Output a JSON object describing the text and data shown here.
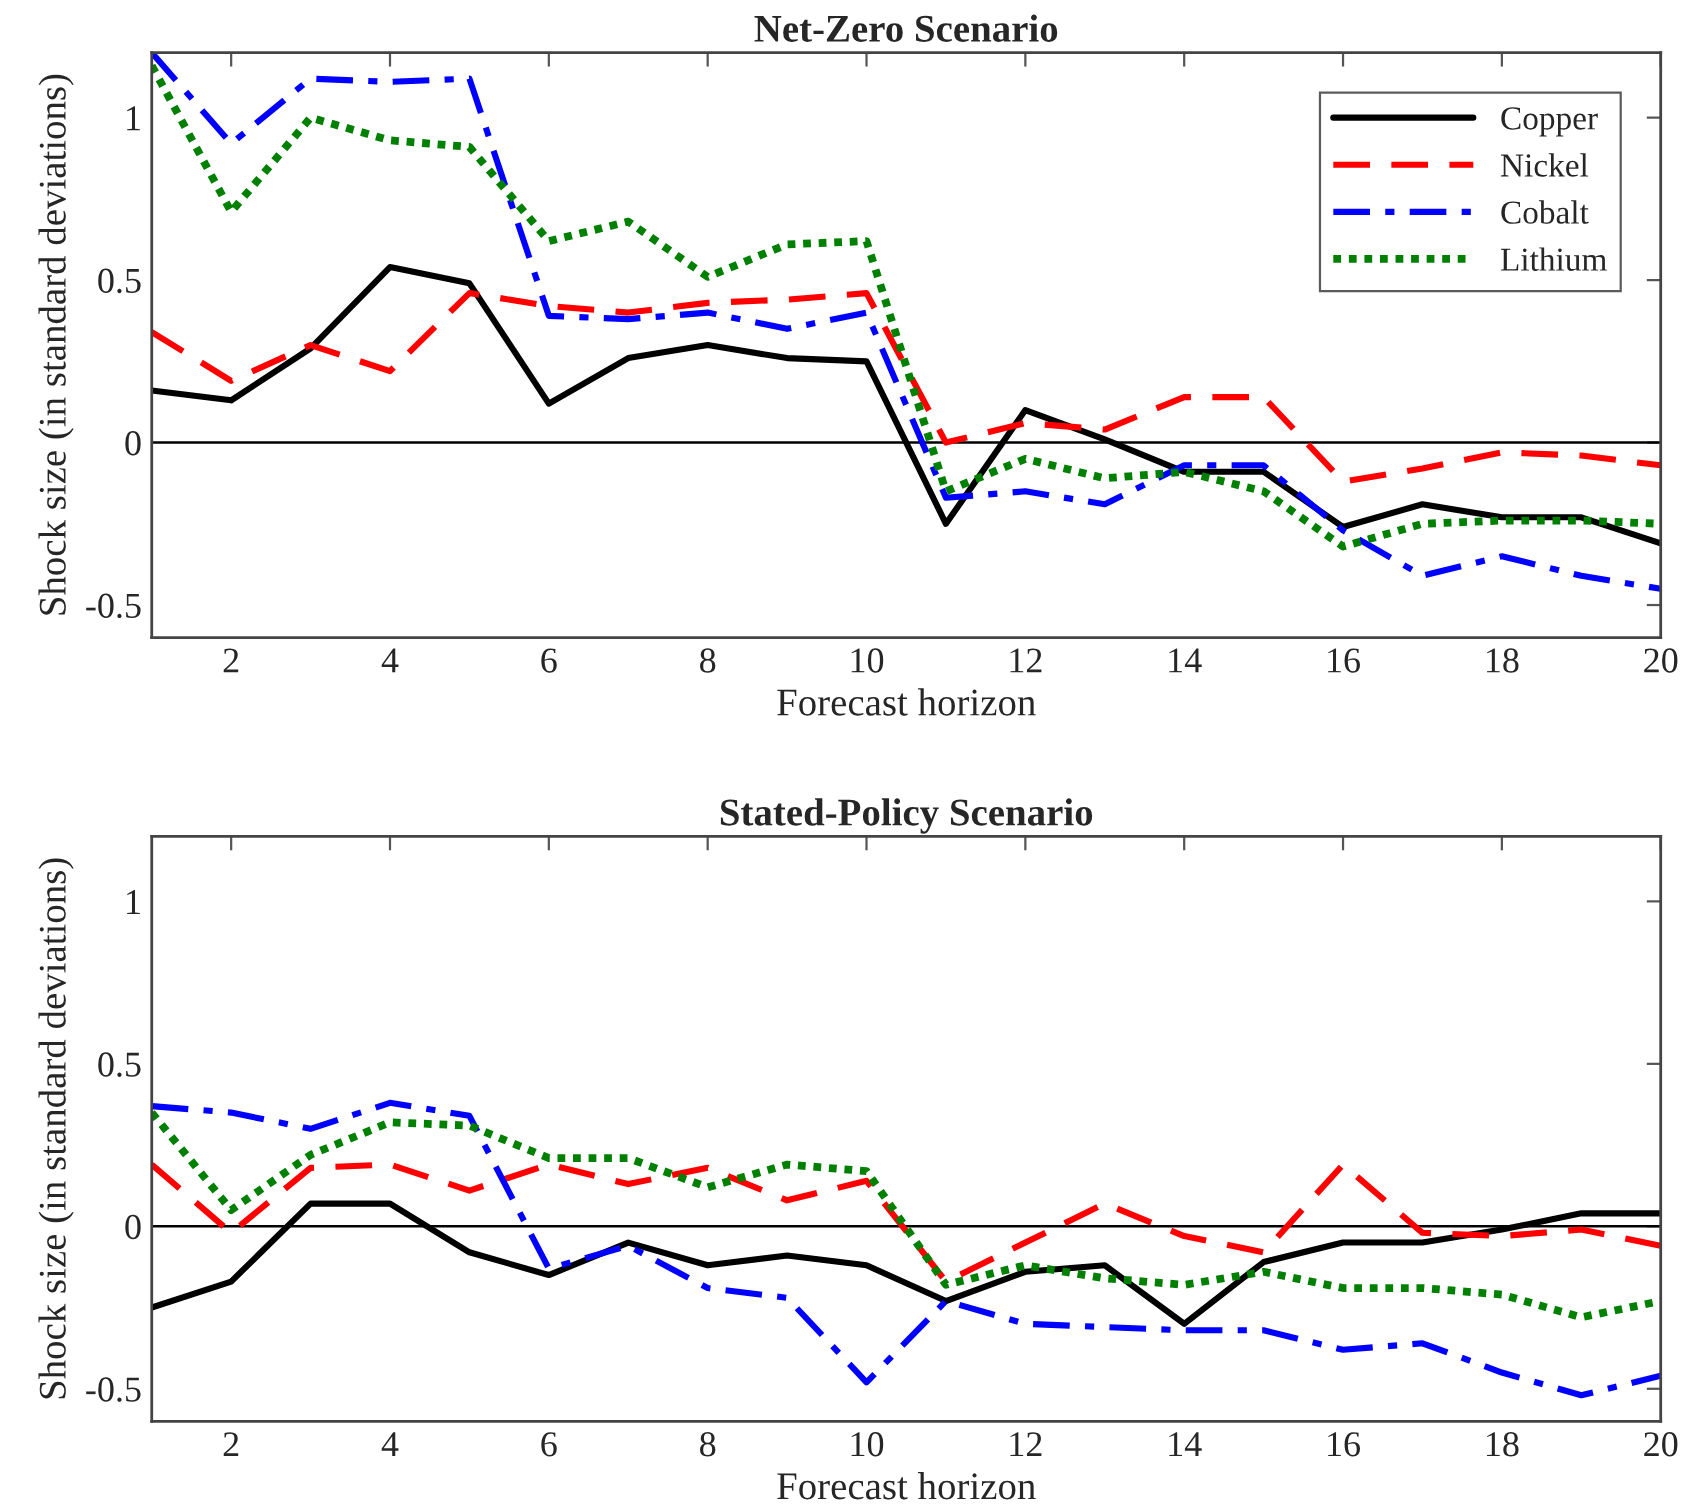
{
  "chart_data": [
    {
      "type": "line",
      "title": "Net-Zero Scenario",
      "xlabel": "Forecast horizon",
      "ylabel": "Shock size (in standard deviations)",
      "x": [
        1,
        2,
        3,
        4,
        5,
        6,
        7,
        8,
        9,
        10,
        11,
        12,
        13,
        14,
        15,
        16,
        17,
        18,
        19,
        20
      ],
      "xlim": [
        1,
        20
      ],
      "xticks": [
        2,
        4,
        6,
        8,
        10,
        12,
        14,
        16,
        18,
        20
      ],
      "ylim": [
        -0.6,
        1.2
      ],
      "yticks": [
        -0.5,
        0,
        0.5,
        1
      ],
      "ref_lines": [
        {
          "axis": "y",
          "value": 0,
          "color": "#000000"
        }
      ],
      "legend": "top right",
      "grid": false,
      "series": [
        {
          "name": "Copper",
          "color": "#000000",
          "line_style": "solid",
          "values": [
            0.16,
            0.13,
            0.29,
            0.54,
            0.49,
            0.12,
            0.26,
            0.3,
            0.26,
            0.25,
            -0.25,
            0.1,
            0.01,
            -0.09,
            -0.09,
            -0.26,
            -0.19,
            -0.23,
            -0.23,
            -0.31
          ]
        },
        {
          "name": "Nickel",
          "color": "#ff0000",
          "line_style": "dashed",
          "values": [
            0.34,
            0.19,
            0.3,
            0.22,
            0.46,
            0.42,
            0.4,
            0.43,
            0.44,
            0.46,
            0.0,
            0.06,
            0.04,
            0.14,
            0.14,
            -0.12,
            -0.08,
            -0.03,
            -0.04,
            -0.07
          ]
        },
        {
          "name": "Cobalt",
          "color": "#0000ff",
          "line_style": "dashdot",
          "values": [
            1.2,
            0.92,
            1.12,
            1.11,
            1.12,
            0.39,
            0.38,
            0.4,
            0.35,
            0.4,
            -0.17,
            -0.15,
            -0.19,
            -0.07,
            -0.07,
            -0.27,
            -0.41,
            -0.35,
            -0.41,
            -0.45
          ]
        },
        {
          "name": "Lithium",
          "color": "#008000",
          "line_style": "dotted",
          "values": [
            1.16,
            0.71,
            1.0,
            0.93,
            0.91,
            0.62,
            0.68,
            0.51,
            0.61,
            0.62,
            -0.15,
            -0.05,
            -0.11,
            -0.09,
            -0.15,
            -0.32,
            -0.25,
            -0.24,
            -0.24,
            -0.25
          ]
        }
      ]
    },
    {
      "type": "line",
      "title": "Stated-Policy Scenario",
      "xlabel": "Forecast horizon",
      "ylabel": "Shock size (in standard deviations)",
      "x": [
        1,
        2,
        3,
        4,
        5,
        6,
        7,
        8,
        9,
        10,
        11,
        12,
        13,
        14,
        15,
        16,
        17,
        18,
        19,
        20
      ],
      "xlim": [
        1,
        20
      ],
      "xticks": [
        2,
        4,
        6,
        8,
        10,
        12,
        14,
        16,
        18,
        20
      ],
      "ylim": [
        -0.6,
        1.2
      ],
      "yticks": [
        -0.5,
        0,
        0.5,
        1
      ],
      "ref_lines": [
        {
          "axis": "y",
          "value": 0,
          "color": "#000000"
        }
      ],
      "legend": false,
      "grid": false,
      "series": [
        {
          "color": "#000000",
          "line_style": "solid",
          "values": [
            -0.25,
            -0.17,
            0.07,
            0.07,
            -0.08,
            -0.15,
            -0.05,
            -0.12,
            -0.09,
            -0.12,
            -0.23,
            -0.14,
            -0.12,
            -0.3,
            -0.11,
            -0.05,
            -0.05,
            -0.01,
            0.04,
            0.04
          ]
        },
        {
          "color": "#ff0000",
          "line_style": "dashed",
          "values": [
            0.19,
            -0.02,
            0.18,
            0.19,
            0.11,
            0.19,
            0.13,
            0.18,
            0.08,
            0.14,
            -0.17,
            -0.05,
            0.07,
            -0.03,
            -0.08,
            0.19,
            -0.02,
            -0.03,
            -0.01,
            -0.06
          ]
        },
        {
          "color": "#0000ff",
          "line_style": "dashdot",
          "values": [
            0.37,
            0.35,
            0.3,
            0.38,
            0.34,
            -0.13,
            -0.06,
            -0.19,
            -0.22,
            -0.48,
            -0.23,
            -0.3,
            -0.31,
            -0.32,
            -0.32,
            -0.38,
            -0.36,
            -0.45,
            -0.52,
            -0.46
          ]
        },
        {
          "color": "#008000",
          "line_style": "dotted",
          "values": [
            0.35,
            0.05,
            0.22,
            0.32,
            0.31,
            0.21,
            0.21,
            0.12,
            0.19,
            0.17,
            -0.18,
            -0.12,
            -0.16,
            -0.18,
            -0.14,
            -0.19,
            -0.19,
            -0.21,
            -0.28,
            -0.23
          ]
        }
      ]
    }
  ]
}
